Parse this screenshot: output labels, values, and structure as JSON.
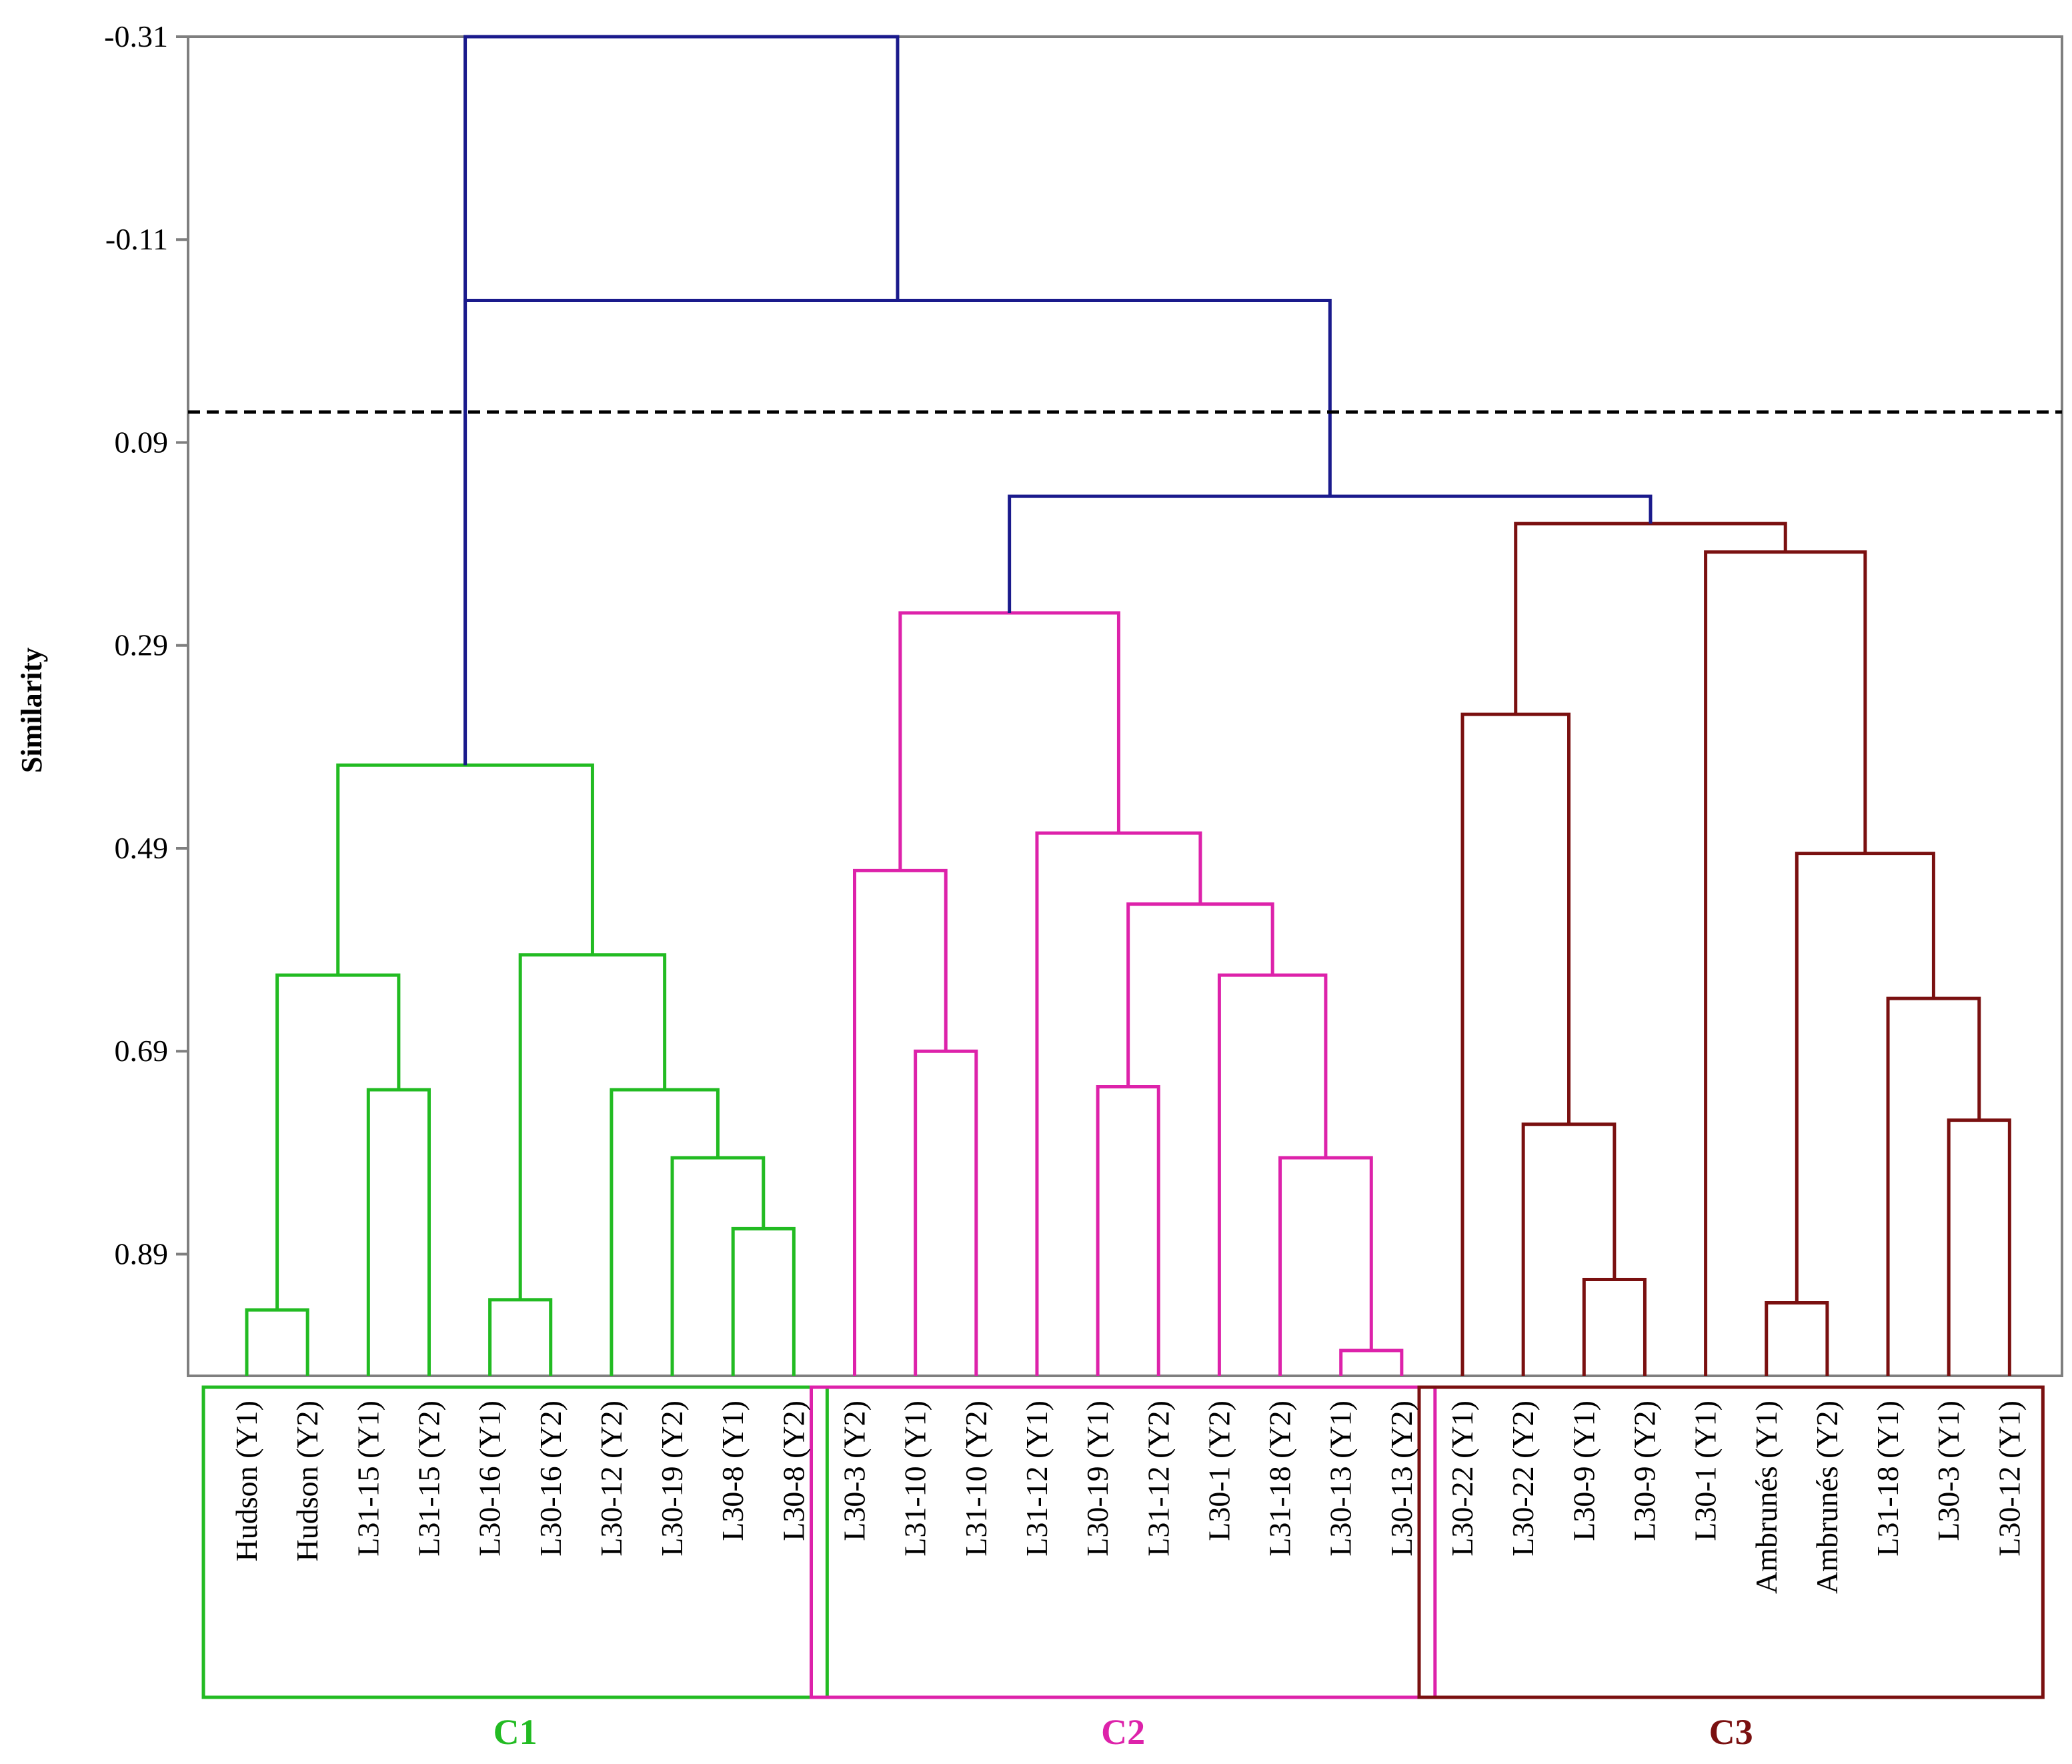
{
  "chart_data": {
    "type": "dendrogram",
    "ylabel": "Similarity",
    "ylim": [
      -0.31,
      1.01
    ],
    "y_ticks": [
      "-0.31",
      "-0.11",
      "0.09",
      "0.29",
      "0.49",
      "0.69",
      "0.89"
    ],
    "cutoff_similarity": 0.06,
    "leaves": [
      "Hudson (Y1)",
      "Hudson (Y2)",
      "L31-15 (Y1)",
      "L31-15 (Y2)",
      "L30-16 (Y1)",
      "L30-16 (Y2)",
      "L30-12 (Y2)",
      "L30-19 (Y2)",
      "L30-8 (Y1)",
      "L30-8 (Y2)",
      "L30-3 (Y2)",
      "L31-10 (Y1)",
      "L31-10 (Y2)",
      "L31-12 (Y1)",
      "L30-19 (Y1)",
      "L31-12 (Y2)",
      "L30-1 (Y2)",
      "L31-18 (Y2)",
      "L30-13 (Y1)",
      "L30-13 (Y2)",
      "L30-22 (Y1)",
      "L30-22 (Y2)",
      "L30-9 (Y1)",
      "L30-9 (Y2)",
      "L30-1 (Y1)",
      "Ambrunés (Y1)",
      "Ambrunés (Y2)",
      "L31-18 (Y1)",
      "L30-3  (Y1)",
      "L30-12 (Y1)"
    ],
    "clusters": [
      {
        "name": "C1",
        "color": "#22bb22",
        "from": 0,
        "to": 9
      },
      {
        "name": "C2",
        "color": "#dd22aa",
        "from": 10,
        "to": 19
      },
      {
        "name": "C3",
        "color": "#7a1010",
        "from": 20,
        "to": 29
      }
    ],
    "root_color": "#1a1a8c",
    "merges": [
      {
        "a": "L0",
        "b": "L1",
        "similarity": 0.945,
        "cluster": "C1"
      },
      {
        "a": "L2",
        "b": "L3",
        "similarity": 0.728,
        "cluster": "C1"
      },
      {
        "a": "M0",
        "b": "M1",
        "similarity": 0.615,
        "cluster": "C1"
      },
      {
        "a": "L4",
        "b": "L5",
        "similarity": 0.935,
        "cluster": "C1"
      },
      {
        "a": "L8",
        "b": "L9",
        "similarity": 0.865,
        "cluster": "C1"
      },
      {
        "a": "L7",
        "b": "M4",
        "similarity": 0.795,
        "cluster": "C1"
      },
      {
        "a": "L6",
        "b": "M5",
        "similarity": 0.728,
        "cluster": "C1"
      },
      {
        "a": "M3",
        "b": "M6",
        "similarity": 0.595,
        "cluster": "C1"
      },
      {
        "a": "M2",
        "b": "M7",
        "similarity": 0.408,
        "cluster": "C1"
      },
      {
        "a": "L11",
        "b": "L12",
        "similarity": 0.69,
        "cluster": "C2"
      },
      {
        "a": "L10",
        "b": "M9",
        "similarity": 0.512,
        "cluster": "C2"
      },
      {
        "a": "L14",
        "b": "L15",
        "similarity": 0.725,
        "cluster": "C2"
      },
      {
        "a": "L18",
        "b": "L19",
        "similarity": 0.985,
        "cluster": "C2"
      },
      {
        "a": "L17",
        "b": "M12",
        "similarity": 0.795,
        "cluster": "C2"
      },
      {
        "a": "L16",
        "b": "M13",
        "similarity": 0.615,
        "cluster": "C2"
      },
      {
        "a": "M11",
        "b": "M14",
        "similarity": 0.545,
        "cluster": "C2"
      },
      {
        "a": "L13",
        "b": "M15",
        "similarity": 0.475,
        "cluster": "C2"
      },
      {
        "a": "M10",
        "b": "M16",
        "similarity": 0.258,
        "cluster": "C2"
      },
      {
        "a": "L22",
        "b": "L23",
        "similarity": 0.915,
        "cluster": "C3"
      },
      {
        "a": "L21",
        "b": "M18",
        "similarity": 0.762,
        "cluster": "C3"
      },
      {
        "a": "L20",
        "b": "M19",
        "similarity": 0.358,
        "cluster": "C3"
      },
      {
        "a": "L25",
        "b": "L26",
        "similarity": 0.938,
        "cluster": "C3"
      },
      {
        "a": "L28",
        "b": "L29",
        "similarity": 0.758,
        "cluster": "C3"
      },
      {
        "a": "L27",
        "b": "M22",
        "similarity": 0.638,
        "cluster": "C3"
      },
      {
        "a": "M21",
        "b": "M23",
        "similarity": 0.495,
        "cluster": "C3"
      },
      {
        "a": "L24",
        "b": "M24",
        "similarity": 0.198,
        "cluster": "C3"
      },
      {
        "a": "M20",
        "b": "M25",
        "similarity": 0.17,
        "cluster": "C3"
      },
      {
        "a": "M17",
        "b": "M26",
        "similarity": 0.143,
        "cluster": "root"
      },
      {
        "a": "M27",
        "b": "M8",
        "similarity": -0.05,
        "cluster": "root"
      },
      {
        "a": "M8",
        "b": "M28",
        "similarity": -0.31,
        "cluster": "root"
      }
    ]
  }
}
